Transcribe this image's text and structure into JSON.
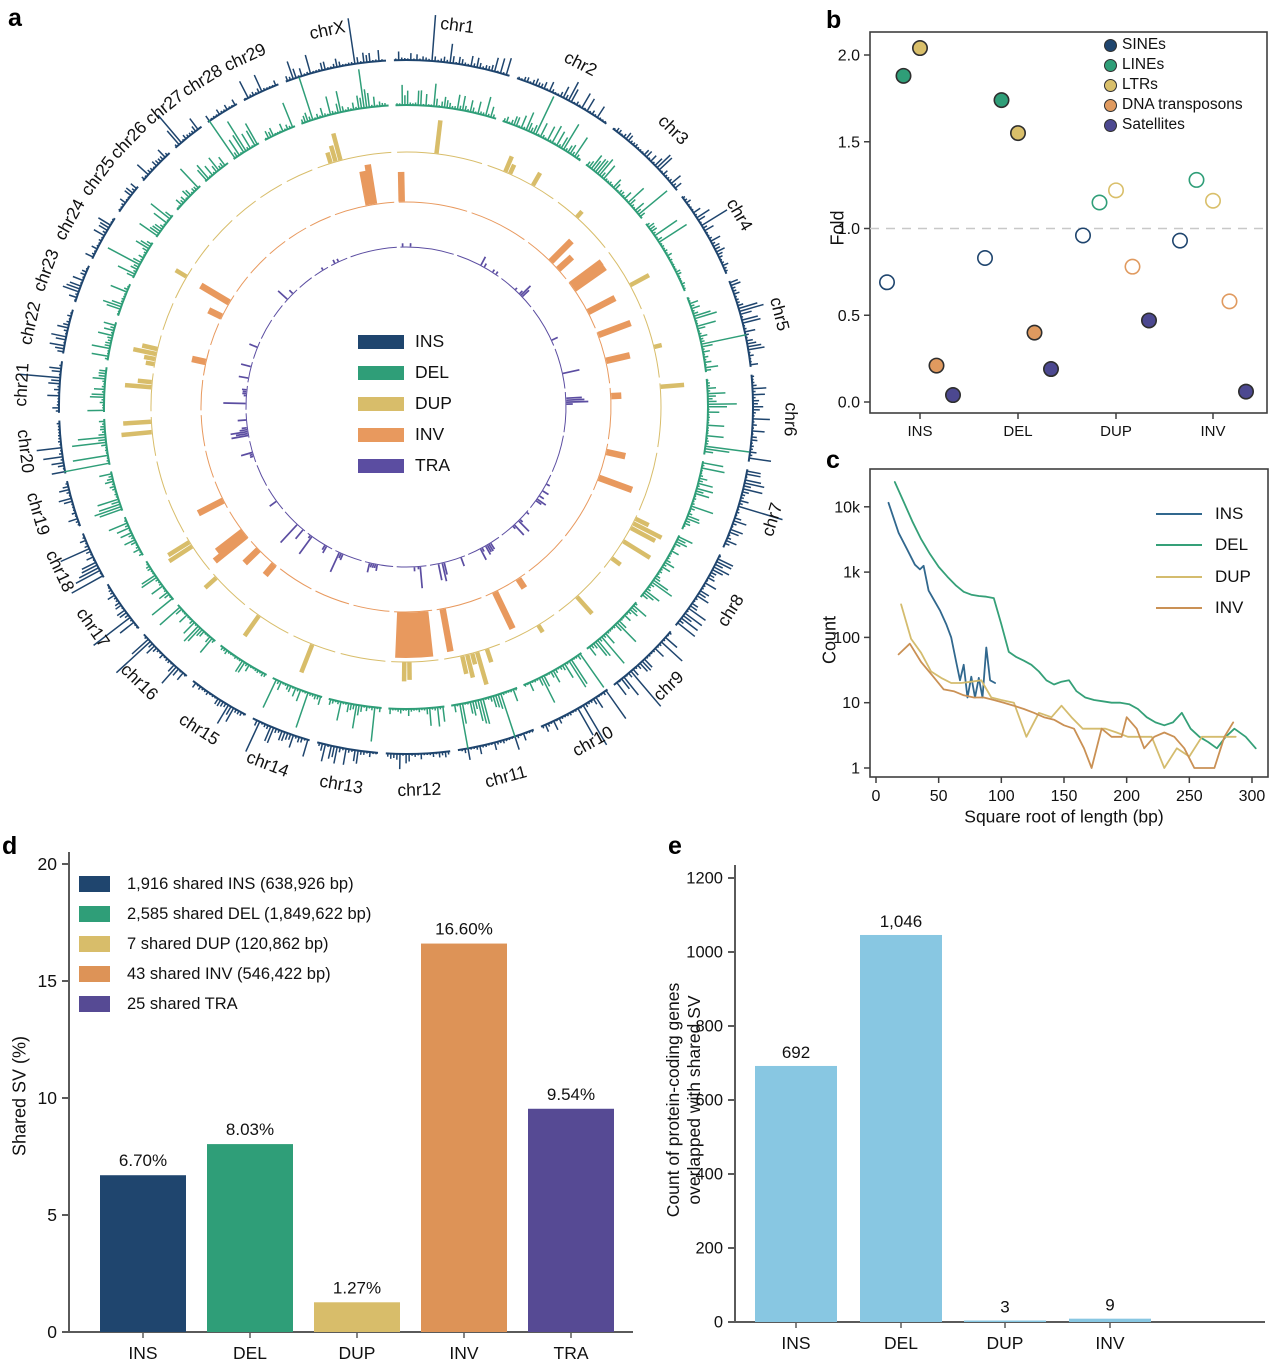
{
  "panel_labels": {
    "a": "a",
    "b": "b",
    "c": "c",
    "d": "d",
    "e": "e"
  },
  "colors": {
    "axis_bc": "#3f3f3f",
    "axis_de": "#5a5a5a",
    "text": "#111111",
    "refline": "#c8c8c8",
    "panel_e_bar": "#88c7e2"
  },
  "chart_data": [
    {
      "panel": "a",
      "type": "circos",
      "description": "Circular genome-wide distribution of structural variants (INS, DEL, DUP, INV, TRA) across chromosomes",
      "tracks": [
        {
          "label": "INS",
          "color": "#1f456e"
        },
        {
          "label": "DEL",
          "color": "#2f9e78"
        },
        {
          "label": "DUP",
          "color": "#d8bd6a"
        },
        {
          "label": "INV",
          "color": "#e8995e"
        },
        {
          "label": "TRA",
          "color": "#5b4da1"
        }
      ],
      "chromosomes": [
        {
          "name": "chr1",
          "size": 158.5
        },
        {
          "name": "chr2",
          "size": 136.2
        },
        {
          "name": "chr3",
          "size": 121.0
        },
        {
          "name": "chr4",
          "size": 120.8
        },
        {
          "name": "chr5",
          "size": 120.1
        },
        {
          "name": "chr6",
          "size": 117.8
        },
        {
          "name": "chr7",
          "size": 110.7
        },
        {
          "name": "chr8",
          "size": 113.3
        },
        {
          "name": "chr9",
          "size": 105.7
        },
        {
          "name": "chr10",
          "size": 103.3
        },
        {
          "name": "chr11",
          "size": 106.3
        },
        {
          "name": "chr12",
          "size": 87.2
        },
        {
          "name": "chr13",
          "size": 83.5
        },
        {
          "name": "chr14",
          "size": 82.4
        },
        {
          "name": "chr15",
          "size": 85.0
        },
        {
          "name": "chr16",
          "size": 81.0
        },
        {
          "name": "chr17",
          "size": 73.2
        },
        {
          "name": "chr18",
          "size": 65.8
        },
        {
          "name": "chr19",
          "size": 63.4
        },
        {
          "name": "chr20",
          "size": 71.9
        },
        {
          "name": "chr21",
          "size": 69.8
        },
        {
          "name": "chr22",
          "size": 60.8
        },
        {
          "name": "chr23",
          "size": 52.5
        },
        {
          "name": "chr24",
          "size": 62.7
        },
        {
          "name": "chr25",
          "size": 42.4
        },
        {
          "name": "chr26",
          "size": 51.7
        },
        {
          "name": "chr27",
          "size": 45.4
        },
        {
          "name": "chr28",
          "size": 46.3
        },
        {
          "name": "chr29",
          "size": 51.5
        },
        {
          "name": "chrX",
          "size": 139.0
        }
      ]
    },
    {
      "panel": "b",
      "type": "scatter",
      "ylabel": "Fold",
      "categories": [
        "INS",
        "DEL",
        "DUP",
        "INV"
      ],
      "yticks": [
        0.0,
        0.5,
        1.0,
        1.5,
        2.0
      ],
      "ytick_labels": [
        "0.0",
        "0.5",
        "1.0",
        "1.5",
        "2.0"
      ],
      "refline": 1.0,
      "legend_position": "top-right",
      "series": [
        {
          "name": "SINEs",
          "color": "#1f456e",
          "values": [
            0.69,
            0.83,
            0.96,
            0.93
          ],
          "filled": [
            false,
            false,
            false,
            false
          ]
        },
        {
          "name": "LINEs",
          "color": "#2f9e78",
          "values": [
            1.88,
            1.74,
            1.15,
            1.28
          ],
          "filled": [
            true,
            true,
            false,
            false
          ]
        },
        {
          "name": "LTRs",
          "color": "#d9bf6a",
          "values": [
            2.04,
            1.55,
            1.22,
            1.16
          ],
          "filled": [
            true,
            true,
            false,
            false
          ]
        },
        {
          "name": "DNA transposons",
          "color": "#e09a5f",
          "values": [
            0.21,
            0.4,
            0.78,
            0.58
          ],
          "filled": [
            true,
            true,
            false,
            false
          ]
        },
        {
          "name": "Satellites",
          "color": "#4c4890",
          "values": [
            0.04,
            0.19,
            0.47,
            0.06
          ],
          "filled": [
            true,
            true,
            true,
            true
          ]
        }
      ]
    },
    {
      "panel": "c",
      "type": "line",
      "xlabel": "Square root of length (bp)",
      "ylabel": "Count",
      "log_y": true,
      "xticks": [
        0,
        50,
        100,
        150,
        200,
        250,
        300
      ],
      "ytick_values": [
        1,
        10,
        100,
        1000,
        10000
      ],
      "ytick_labels": [
        "1",
        "10",
        "100",
        "1k",
        "10k"
      ],
      "legend_position": "top-right",
      "series": [
        {
          "name": "INS",
          "color": "#31688e",
          "x": [
            10,
            18,
            25,
            31,
            35,
            38,
            42,
            46,
            51,
            56,
            60,
            64,
            67,
            70,
            73,
            76,
            79,
            82,
            85,
            88,
            91,
            95
          ],
          "y": [
            11500,
            4000,
            2200,
            1300,
            1100,
            1250,
            520,
            380,
            260,
            160,
            100,
            42,
            22,
            38,
            12,
            25,
            12,
            24,
            12,
            70,
            22,
            20
          ]
        },
        {
          "name": "DEL",
          "color": "#35a078",
          "x": [
            15,
            22,
            29,
            36,
            43,
            50,
            57,
            64,
            70,
            76,
            82,
            88,
            94,
            100,
            106,
            112,
            118,
            124,
            130,
            136,
            142,
            148,
            154,
            160,
            167,
            174,
            181,
            188,
            195,
            202,
            209,
            216,
            223,
            230,
            237,
            244,
            251,
            258,
            265,
            272,
            279,
            286,
            295,
            303
          ],
          "y": [
            24000,
            12000,
            6000,
            3200,
            1900,
            1200,
            850,
            620,
            500,
            450,
            430,
            420,
            400,
            160,
            60,
            50,
            44,
            38,
            30,
            22,
            19,
            21,
            22,
            15,
            12,
            11,
            10.5,
            10,
            10,
            9.5,
            8,
            6,
            5,
            4.5,
            5,
            7,
            4,
            3,
            2.5,
            2,
            3,
            4,
            3,
            2
          ]
        },
        {
          "name": "DUP",
          "color": "#d4bc6e",
          "x": [
            20,
            28,
            36,
            44,
            52,
            60,
            68,
            76,
            84,
            92,
            100,
            110,
            120,
            130,
            140,
            148,
            156,
            165,
            174,
            183,
            192,
            201,
            210,
            220,
            230,
            240,
            250,
            260,
            270,
            280,
            287
          ],
          "y": [
            320,
            95,
            58,
            30,
            24,
            20,
            20,
            21,
            22,
            12,
            11,
            10,
            3,
            7,
            6,
            9,
            6,
            4,
            4,
            4,
            3.5,
            3,
            3,
            3,
            1,
            2,
            1.5,
            3,
            3,
            3,
            3
          ]
        },
        {
          "name": "INV",
          "color": "#ca9155",
          "x": [
            18,
            27,
            36,
            45,
            54,
            62,
            70,
            78,
            86,
            94,
            102,
            110,
            118,
            126,
            134,
            142,
            150,
            158,
            166,
            172,
            180,
            188,
            196,
            200,
            208,
            214,
            222,
            230,
            238,
            246,
            254,
            262,
            270,
            278,
            285
          ],
          "y": [
            55,
            80,
            42,
            26,
            16,
            15,
            13,
            12,
            12,
            11,
            10,
            9,
            8,
            7,
            6,
            5.5,
            4.5,
            4,
            2,
            1,
            4,
            3,
            3,
            6,
            4,
            2,
            3,
            3.5,
            3,
            2,
            1,
            1,
            1,
            3,
            5
          ]
        }
      ]
    },
    {
      "panel": "d",
      "type": "bar",
      "ylabel": "Shared SV (%)",
      "ylim": [
        0,
        20
      ],
      "yticks": [
        0,
        5,
        10,
        15,
        20
      ],
      "categories": [
        "INS",
        "DEL",
        "DUP",
        "INV",
        "TRA"
      ],
      "values": [
        6.7,
        8.03,
        1.27,
        16.6,
        9.54
      ],
      "value_labels": [
        "6.70%",
        "8.03%",
        "1.27%",
        "16.60%",
        "9.54%"
      ],
      "colors": [
        "#1f456e",
        "#2f9e78",
        "#d8bd6a",
        "#dd9357",
        "#564a94"
      ],
      "legend": [
        "1,916 shared INS (638,926 bp)",
        "2,585 shared DEL (1,849,622 bp)",
        "7 shared DUP (120,862 bp)",
        "43 shared INV (546,422 bp)",
        "25 shared TRA"
      ]
    },
    {
      "panel": "e",
      "type": "bar",
      "ylabel_line1": "Count of protein-coding genes",
      "ylabel_line2": "overlapped with shared SV",
      "ylim": [
        0,
        1200
      ],
      "yticks": [
        0,
        200,
        400,
        600,
        800,
        1000,
        1200
      ],
      "categories": [
        "INS",
        "DEL",
        "DUP",
        "INV"
      ],
      "values": [
        692,
        1046,
        3,
        9
      ],
      "value_labels": [
        "692",
        "1,046",
        "3",
        "9"
      ],
      "bar_color": "#88c7e2"
    }
  ]
}
